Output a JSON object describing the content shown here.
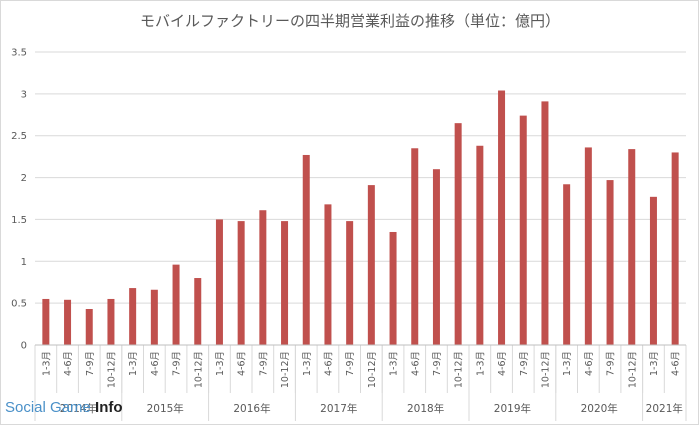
{
  "chart_data": {
    "type": "bar",
    "title": "モバイルファクトリーの四半期営業利益の推移（単位：億円）",
    "ylim": [
      0,
      3.5
    ],
    "yticks": [
      "0",
      "0.5",
      "1",
      "1.5",
      "2",
      "2.5",
      "3",
      "3.5"
    ],
    "grid": true,
    "bar_color": "#c0504d",
    "categories": [
      "1-3月",
      "4-6月",
      "7-9月",
      "10-12月",
      "1-3月",
      "4-6月",
      "7-9月",
      "10-12月",
      "1-3月",
      "4-6月",
      "7-9月",
      "10-12月",
      "1-3月",
      "4-6月",
      "7-9月",
      "10-12月",
      "1-3月",
      "4-6月",
      "7-9月",
      "10-12月",
      "1-3月",
      "4-6月",
      "7-9月",
      "10-12月",
      "1-3月",
      "4-6月",
      "7-9月",
      "10-12月",
      "1-3月",
      "4-6月"
    ],
    "values": [
      0.55,
      0.54,
      0.43,
      0.55,
      0.68,
      0.66,
      0.96,
      0.8,
      1.5,
      1.48,
      1.61,
      1.48,
      2.27,
      1.68,
      1.48,
      1.91,
      1.35,
      2.35,
      2.1,
      2.65,
      2.38,
      3.04,
      2.74,
      2.91,
      1.92,
      2.36,
      1.97,
      2.34,
      1.77,
      2.3
    ],
    "years": [
      "2014年",
      "2015年",
      "2016年",
      "2017年",
      "2018年",
      "2019年",
      "2020年",
      "2021年"
    ],
    "year_spans": [
      4,
      4,
      4,
      4,
      4,
      4,
      4,
      2
    ]
  },
  "watermark": {
    "text": "Social Game ",
    "bold": "Info"
  }
}
